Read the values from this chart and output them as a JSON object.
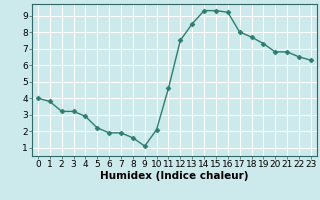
{
  "x": [
    0,
    1,
    2,
    3,
    4,
    5,
    6,
    7,
    8,
    9,
    10,
    11,
    12,
    13,
    14,
    15,
    16,
    17,
    18,
    19,
    20,
    21,
    22,
    23
  ],
  "y": [
    4.0,
    3.8,
    3.2,
    3.2,
    2.9,
    2.2,
    1.9,
    1.9,
    1.6,
    1.1,
    2.1,
    4.6,
    7.5,
    8.5,
    9.3,
    9.3,
    9.2,
    8.0,
    7.7,
    7.3,
    6.8,
    6.8,
    6.5,
    6.3
  ],
  "line_color": "#2e7d6e",
  "marker": "D",
  "marker_size": 2.5,
  "bg_color": "#cce9eb",
  "grid_color": "#ffffff",
  "xlabel": "Humidex (Indice chaleur)",
  "xlim": [
    -0.5,
    23.5
  ],
  "ylim": [
    0.5,
    9.7
  ],
  "yticks": [
    1,
    2,
    3,
    4,
    5,
    6,
    7,
    8,
    9
  ],
  "xticks": [
    0,
    1,
    2,
    3,
    4,
    5,
    6,
    7,
    8,
    9,
    10,
    11,
    12,
    13,
    14,
    15,
    16,
    17,
    18,
    19,
    20,
    21,
    22,
    23
  ],
  "xlabel_fontsize": 7.5,
  "tick_fontsize": 6.5,
  "line_width": 1.0,
  "spine_color": "#336666"
}
